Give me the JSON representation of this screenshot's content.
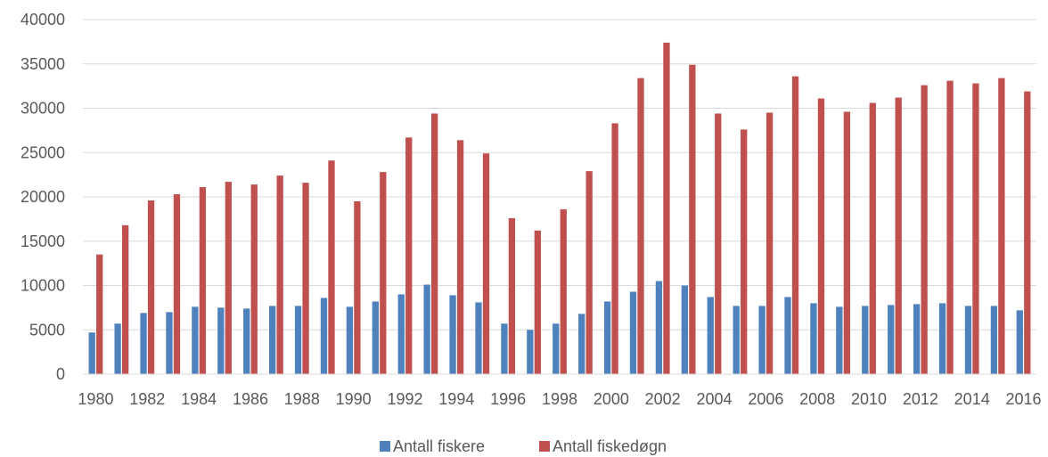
{
  "chart_data": {
    "type": "bar",
    "title": "",
    "xlabel": "",
    "ylabel": "",
    "ylim": [
      0,
      40000
    ],
    "yticks": [
      0,
      5000,
      10000,
      15000,
      20000,
      25000,
      30000,
      35000,
      40000
    ],
    "grid": true,
    "legend_position": "bottom",
    "categories": [
      "1980",
      "1981",
      "1982",
      "1983",
      "1984",
      "1985",
      "1986",
      "1987",
      "1988",
      "1989",
      "1990",
      "1991",
      "1992",
      "1993",
      "1994",
      "1995",
      "1996",
      "1997",
      "1998",
      "1999",
      "2000",
      "2001",
      "2002",
      "2003",
      "2004",
      "2005",
      "2006",
      "2007",
      "2008",
      "2009",
      "2010",
      "2011",
      "2012",
      "2013",
      "2014",
      "2015",
      "2016"
    ],
    "xtick_labels": [
      "1980",
      "",
      "1982",
      "",
      "1984",
      "",
      "1986",
      "",
      "1988",
      "",
      "1990",
      "",
      "1992",
      "",
      "1994",
      "",
      "1996",
      "",
      "1998",
      "",
      "2000",
      "",
      "2002",
      "",
      "2004",
      "",
      "2006",
      "",
      "2008",
      "",
      "2010",
      "",
      "2012",
      "",
      "2014",
      "",
      "2016"
    ],
    "series": [
      {
        "name": "Antall fiskere",
        "color": "#4f81bd",
        "values": [
          4700,
          5700,
          6900,
          7000,
          7600,
          7500,
          7400,
          7700,
          7700,
          8600,
          7600,
          8200,
          9000,
          10100,
          8900,
          8100,
          5700,
          5000,
          5700,
          6800,
          8200,
          9300,
          10500,
          10000,
          8700,
          7700,
          7700,
          8700,
          8000,
          7600,
          7700,
          7800,
          7900,
          8000,
          7700,
          7700,
          7200
        ]
      },
      {
        "name": "Antall fiskedøgn",
        "color": "#c0504d",
        "values": [
          13500,
          16800,
          19600,
          20300,
          21100,
          21700,
          21400,
          22400,
          21600,
          24100,
          19500,
          22800,
          26700,
          29400,
          26400,
          24900,
          17600,
          16200,
          18600,
          22900,
          28300,
          33400,
          37400,
          34900,
          29400,
          27600,
          29500,
          33600,
          31100,
          29600,
          30600,
          31200,
          32600,
          33100,
          32800,
          33400,
          31900
        ]
      }
    ]
  }
}
